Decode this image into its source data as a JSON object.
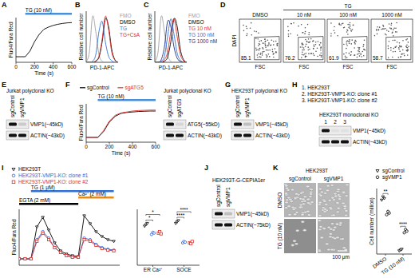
{
  "chart_data": [
    {
      "panel": "A",
      "type": "line",
      "x_label": "Time (s)",
      "y_label": "Fluo4/Fura Red",
      "x": [
        0,
        50,
        100,
        150,
        200,
        250,
        300,
        350,
        400,
        450,
        500,
        550,
        600
      ],
      "series": [
        {
          "color": "#000000",
          "values": [
            1,
            1,
            1,
            2,
            3.7,
            5,
            5.9,
            6.3,
            6.6,
            6.8,
            6.95,
            7.05,
            7.1
          ]
        }
      ],
      "xlim": [
        0,
        600
      ],
      "ylim": [
        0,
        8
      ],
      "xticks": [
        0,
        200,
        400,
        600
      ],
      "tick_labels": "x",
      "annotations": [
        {
          "text": "TG (10 nM)",
          "start": 100,
          "end": 600,
          "color": "#4a90d9"
        }
      ]
    },
    {
      "panel": "B",
      "type": "line",
      "line_style": "smooth",
      "x_label": "PD-1-APC",
      "y_label": "Relative cell number",
      "x": [
        0,
        1,
        2,
        3,
        4,
        5,
        6,
        7,
        8,
        9,
        10
      ],
      "xlim": [
        0,
        10
      ],
      "ylim": [
        0,
        1
      ],
      "tick_labels": false,
      "legend": "right",
      "series": [
        {
          "name": "FMO",
          "color": "#9e9e9e",
          "values": [
            0,
            0.2,
            0.9,
            0.6,
            0.15,
            0.02,
            0,
            0,
            0,
            0,
            0
          ]
        },
        {
          "name": "DMSO",
          "color": "#000000",
          "values": [
            0,
            0,
            0,
            0.02,
            0.1,
            0.4,
            0.85,
            0.7,
            0.25,
            0.05,
            0
          ]
        },
        {
          "name": "TG",
          "color": "#2f6fd6",
          "values": [
            0,
            0,
            0.02,
            0.15,
            0.6,
            0.8,
            0.4,
            0.12,
            0.03,
            0,
            0
          ]
        },
        {
          "name": "TG+CsA",
          "color": "#e0302a",
          "values": [
            0,
            0,
            0,
            0.03,
            0.12,
            0.45,
            0.9,
            0.65,
            0.2,
            0.04,
            0
          ]
        }
      ]
    },
    {
      "panel": "C",
      "type": "line",
      "line_style": "smooth",
      "x_label": "PD-1-APC",
      "y_label": "Relative cell number",
      "x": [
        0,
        1,
        2,
        3,
        4,
        5,
        6,
        7,
        8,
        9,
        10
      ],
      "xlim": [
        0,
        10
      ],
      "ylim": [
        0,
        1
      ],
      "tick_labels": false,
      "legend": "right",
      "series": [
        {
          "name": "FMO",
          "color": "#9e9e9e",
          "values": [
            0,
            0.2,
            0.9,
            0.6,
            0.15,
            0.02,
            0,
            0,
            0,
            0,
            0
          ]
        },
        {
          "name": "DMSO",
          "color": "#000000",
          "values": [
            0,
            0,
            0,
            0.02,
            0.1,
            0.4,
            0.85,
            0.7,
            0.25,
            0.05,
            0
          ]
        },
        {
          "name": "TG 10 nM",
          "color": "#e0302a",
          "values": [
            0,
            0,
            0,
            0.05,
            0.2,
            0.6,
            0.85,
            0.5,
            0.15,
            0.03,
            0
          ]
        },
        {
          "name": "TG 100 nM",
          "color": "#2f6fd6",
          "values": [
            0,
            0,
            0.02,
            0.12,
            0.5,
            0.85,
            0.55,
            0.18,
            0.04,
            0,
            0
          ]
        },
        {
          "name": "TG 1000 nM",
          "color": "#1a2f8a",
          "values": [
            0,
            0,
            0.05,
            0.3,
            0.8,
            0.7,
            0.3,
            0.08,
            0.02,
            0,
            0
          ]
        }
      ]
    },
    {
      "panel": "D",
      "type": "flow",
      "x_label": "FSC",
      "y_label": "DAPI",
      "group_label": "TG",
      "categories": [
        "DMSO",
        "10 nM",
        "100 nM",
        "1000 nM"
      ],
      "values": [
        85.1,
        76.2,
        61.9,
        58.7
      ],
      "data_labels": true,
      "tick_labels": false
    },
    {
      "panel": "F",
      "type": "line",
      "x_label": "Time (s)",
      "y_label": "Fluo4/Fura Red",
      "x": [
        0,
        50,
        100,
        150,
        200,
        250,
        300,
        350,
        400,
        450,
        500,
        550,
        600
      ],
      "xlim": [
        0,
        600
      ],
      "ylim": [
        0,
        8
      ],
      "xticks": [
        0,
        200,
        400,
        600
      ],
      "tick_labels": "x",
      "legend": "top",
      "series": [
        {
          "name": "sgControl",
          "color": "#000000",
          "values": [
            1,
            1,
            1,
            2.2,
            4.2,
            5.4,
            6,
            6.2,
            6.3,
            6.4,
            6.45,
            6.5,
            6.5
          ]
        },
        {
          "name": "sgATG5",
          "color": "#e0302a",
          "values": [
            1,
            1,
            1,
            2.4,
            4.4,
            5.6,
            6.1,
            6.3,
            6.5,
            6.6,
            6.65,
            6.7,
            6.7
          ]
        }
      ],
      "annotations": [
        {
          "text": "TG (10 nM)",
          "start": 100,
          "end": 600,
          "color": "#4a90d9"
        }
      ]
    },
    {
      "panel": "I",
      "type": "line",
      "y_label": "Fluo4/Fura Red",
      "x": [
        0,
        50,
        100,
        150,
        200,
        250,
        300,
        350,
        400,
        450,
        500,
        550,
        600,
        650,
        700,
        750,
        800
      ],
      "xlim": [
        0,
        850
      ],
      "ylim": [
        0,
        3.5
      ],
      "tick_labels": false,
      "legend": "top-left",
      "series": [
        {
          "name": "HEK293T",
          "color": "#000000",
          "marker": "triangle",
          "values": [
            0.4,
            0.4,
            0.4,
            2.4,
            3,
            2.2,
            1.4,
            0.9,
            0.7,
            0.6,
            0.55,
            3.1,
            2.6,
            2.1,
            1.8,
            1.6,
            1.5
          ]
        },
        {
          "name": "HEK293T-VMP1-KO: clone #1",
          "color": "#2f5fd0",
          "marker": "circle",
          "values": [
            0.4,
            0.4,
            0.4,
            1.6,
            2.1,
            1.7,
            1.1,
            0.8,
            0.6,
            0.5,
            0.5,
            1.7,
            1.6,
            1.3,
            1.1,
            1,
            0.95
          ]
        },
        {
          "name": "HEK293T-VMP1-KO: clone #2",
          "color": "#e0302a",
          "marker": "square",
          "values": [
            0.4,
            0.4,
            0.4,
            1.5,
            2,
            1.6,
            1.1,
            0.8,
            0.6,
            0.5,
            0.5,
            1.6,
            1.5,
            1.25,
            1.05,
            0.95,
            0.9
          ]
        }
      ],
      "annotations": [
        {
          "text": "TG (1 μM)",
          "start": 100,
          "end": 800,
          "color": "#2f6fd6"
        },
        {
          "text": "Ca²⁺ (2 mM)",
          "start": 500,
          "end": 800,
          "color": "#e88a1a"
        },
        {
          "text": "EGTA (2 mM)",
          "start": 0,
          "end": 500,
          "color": "#000000"
        }
      ]
    },
    {
      "type": "scatter",
      "categories": [
        "ER Ca²⁺",
        "SOCE"
      ],
      "ylim": [
        0,
        4
      ],
      "tick_labels": "x",
      "series": [
        {
          "color": "#000000",
          "marker": "triangle",
          "values": [
            [
              2.8,
              2.9,
              3
            ],
            [
              3,
              3.1,
              3.2
            ]
          ]
        },
        {
          "color": "#2f5fd0",
          "marker": "circle",
          "values": [
            [
              2.2,
              2.35,
              2.3
            ],
            [
              1.6,
              1.7,
              1.65
            ]
          ]
        },
        {
          "color": "#e0302a",
          "marker": "square",
          "values": [
            [
              2.3,
              2.4,
              2.25
            ],
            [
              1.6,
              1.55,
              1.7
            ]
          ]
        }
      ],
      "significance": [
        {
          "text": "*",
          "category": 0,
          "series": [
            0,
            1
          ]
        },
        {
          "text": "*",
          "category": 0,
          "series": [
            0,
            2
          ]
        },
        {
          "text": "****",
          "category": 1,
          "series": [
            0,
            1
          ]
        },
        {
          "text": "****",
          "category": 1,
          "series": [
            0,
            2
          ]
        }
      ]
    },
    {
      "type": "scatter",
      "y_label": "Cell number (million)",
      "categories": [
        "DMSO",
        "TG (10 nM)"
      ],
      "ylim": [
        0,
        4
      ],
      "tick_labels": "x",
      "legend": "top-left",
      "series": [
        {
          "name": "sgControl",
          "color": "#000000",
          "marker": "triangle",
          "values": [
            [
              3.3,
              3.5,
              3.4
            ],
            [
              0.2,
              0.25,
              0.3
            ]
          ]
        },
        {
          "name": "sgVMP1",
          "color": "#000000",
          "marker": "circle",
          "values": [
            [
              2.4,
              2.6,
              2.5
            ],
            [
              1.3,
              1.5,
              1.4
            ]
          ]
        }
      ],
      "significance": [
        {
          "text": "**",
          "category": 0,
          "series": [
            0,
            1
          ]
        },
        {
          "text": "****",
          "category": 1,
          "series": [
            0,
            1
          ]
        }
      ]
    }
  ],
  "blots": [
    {
      "panel": "E",
      "title": "Jurkat polyclonal KO",
      "lanes": [
        "sgControl",
        "sgVMP1"
      ],
      "bands": [
        {
          "label": "VMP1(~45kD)",
          "intensity": [
            1,
            0.15
          ]
        },
        {
          "label": "ACTIN(~43kD)",
          "intensity": [
            1,
            1
          ]
        }
      ]
    },
    {
      "title": "Jurkat polyclonal KO",
      "lanes": [
        "sgControl",
        "sgATG5"
      ],
      "bands": [
        {
          "label": "ATG5(~55kD)",
          "intensity": [
            1,
            0.1
          ]
        },
        {
          "label": "ACTIN(~43kD)",
          "intensity": [
            1,
            1
          ]
        }
      ]
    },
    {
      "panel": "G",
      "title": "HEK293T polyclonal KO",
      "lanes": [
        "sgControl",
        "sgVMP1"
      ],
      "bands": [
        {
          "label": "VMP1(~45kD)",
          "intensity": [
            1,
            0.2
          ]
        },
        {
          "label": "ACTIN(~43kD)",
          "intensity": [
            1,
            1
          ]
        }
      ]
    },
    {
      "panel": "H",
      "key": [
        "1. HEK293T",
        "2. HEK293T-VMP1-KO: clone #1",
        "3. HEK293T-VMP1-KO: clone #2"
      ],
      "title": "HEK293T monoclonal KO",
      "lanes": [
        "1",
        "2",
        "3"
      ],
      "bands": [
        {
          "label": "VMP1(~45kD)",
          "intensity": [
            1,
            0.05,
            0.05
          ]
        },
        {
          "label": "ACTIN(~43kD)",
          "intensity": [
            1,
            1,
            1
          ]
        }
      ]
    },
    {
      "panel": "J",
      "title": "HEK293T-G-CEPIA1er",
      "lanes": [
        "sgControl",
        "sgVMP1"
      ],
      "bands": [
        {
          "label": "VMP1(~45kD)",
          "intensity": [
            1,
            0.2
          ]
        },
        {
          "label": "ACTIN(~75kD)",
          "intensity": [
            1,
            1
          ]
        }
      ]
    }
  ],
  "images": {
    "panel": "K",
    "title": "HEK293T",
    "columns": [
      "sgControl",
      "sgVMP1"
    ],
    "rows": [
      "DMSO",
      "TG (10 nM)"
    ],
    "scale_bar": "100 μm"
  }
}
